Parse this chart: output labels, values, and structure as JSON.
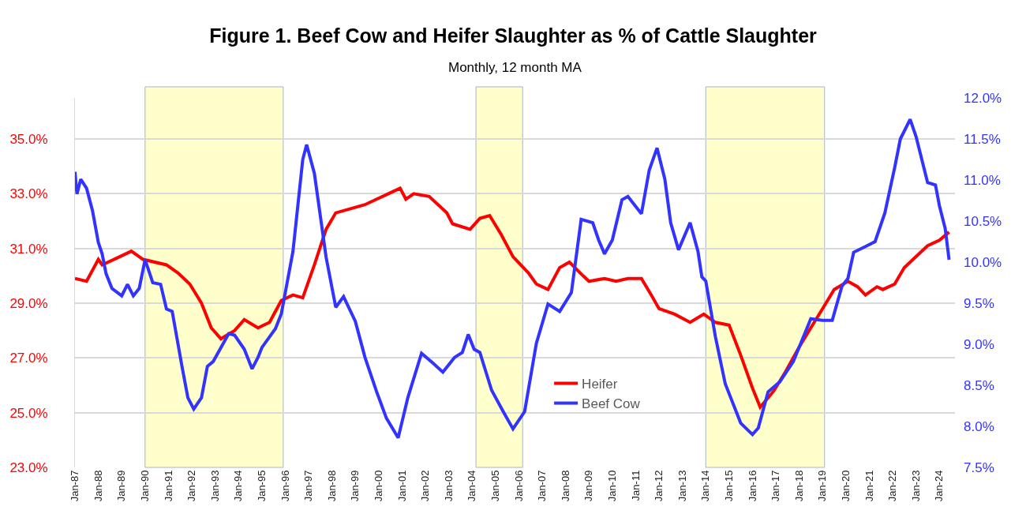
{
  "chart_data": {
    "type": "line",
    "title": "Figure 1. Beef Cow and Heifer Slaughter as % of Cattle Slaughter",
    "subtitle": "Monthly, 12 month MA",
    "series": [
      {
        "name": "Heifer",
        "color": "#ff0000",
        "axis": "y",
        "x": [
          "1987-01",
          "1987-07",
          "1988-01",
          "1988-03",
          "1988-12",
          "1989-06",
          "1989-12",
          "1990-12",
          "1991-06",
          "1991-12",
          "1992-06",
          "1992-11",
          "1993-04",
          "1993-11",
          "1994-04",
          "1994-11",
          "1995-05",
          "1995-11",
          "1996-05",
          "1996-10",
          "1997-04",
          "1997-10",
          "1998-03",
          "1999-01",
          "1999-06",
          "1999-12",
          "2000-06",
          "2000-12",
          "2001-03",
          "2001-07",
          "2002-03",
          "2002-12",
          "2003-03",
          "2003-12",
          "2004-05",
          "2004-10",
          "2005-04",
          "2005-10",
          "2006-06",
          "2006-10",
          "2007-04",
          "2007-10",
          "2008-03",
          "2008-10",
          "2009-01",
          "2009-09",
          "2010-03",
          "2010-09",
          "2011-04",
          "2011-09",
          "2012-01",
          "2012-09",
          "2013-05",
          "2013-12",
          "2014-06",
          "2015-01",
          "2015-07",
          "2016-01",
          "2016-05",
          "2016-12",
          "2017-06",
          "2018-01",
          "2018-07",
          "2019-01",
          "2019-07",
          "2020-02",
          "2020-07",
          "2020-11",
          "2021-05",
          "2021-08",
          "2022-02",
          "2022-07",
          "2023-01",
          "2023-07",
          "2024-01",
          "2024-06"
        ],
        "values": [
          29.9,
          29.8,
          30.6,
          30.4,
          30.7,
          30.9,
          30.6,
          30.4,
          30.1,
          29.7,
          29.0,
          28.1,
          27.7,
          28.0,
          28.4,
          28.1,
          28.3,
          29.1,
          29.3,
          29.2,
          30.4,
          31.7,
          32.3,
          32.5,
          32.6,
          32.8,
          33.0,
          33.2,
          32.8,
          33.0,
          32.9,
          32.3,
          31.9,
          31.7,
          32.1,
          32.2,
          31.5,
          30.7,
          30.1,
          29.7,
          29.5,
          30.3,
          30.5,
          30.0,
          29.8,
          29.9,
          29.8,
          29.9,
          29.9,
          29.3,
          28.8,
          28.6,
          28.3,
          28.6,
          28.3,
          28.2,
          27.1,
          25.9,
          25.2,
          25.8,
          26.5,
          27.4,
          28.1,
          28.8,
          29.5,
          29.8,
          29.6,
          29.3,
          29.6,
          29.5,
          29.7,
          30.3,
          30.7,
          31.1,
          31.3,
          31.6
        ]
      },
      {
        "name": "Beef Cow",
        "color": "#3333ff",
        "axis": "y2",
        "x": [
          "1987-01",
          "1987-02",
          "1987-04",
          "1987-07",
          "1987-10",
          "1988-01",
          "1988-03",
          "1988-05",
          "1988-08",
          "1989-01",
          "1989-04",
          "1989-07",
          "1989-10",
          "1990-01",
          "1990-05",
          "1990-09",
          "1990-12",
          "1991-03",
          "1991-08",
          "1991-11",
          "1992-02",
          "1992-06",
          "1992-09",
          "1992-12",
          "1993-04",
          "1993-08",
          "1993-11",
          "1994-04",
          "1994-08",
          "1994-11",
          "1995-01",
          "1995-05",
          "1995-08",
          "1995-11",
          "1996-05",
          "1996-10",
          "1996-12",
          "1997-04",
          "1997-10",
          "1998-03",
          "1998-07",
          "1999-01",
          "1999-06",
          "1999-12",
          "2000-05",
          "2000-11",
          "2001-04",
          "2001-11",
          "2002-05",
          "2002-10",
          "2003-04",
          "2003-08",
          "2003-11",
          "2004-02",
          "2004-05",
          "2004-11",
          "2005-05",
          "2005-10",
          "2006-04",
          "2006-10",
          "2007-04",
          "2007-10",
          "2008-04",
          "2008-09",
          "2009-03",
          "2009-06",
          "2009-09",
          "2010-01",
          "2010-06",
          "2010-09",
          "2011-04",
          "2011-08",
          "2011-12",
          "2012-04",
          "2012-07",
          "2012-11",
          "2013-05",
          "2013-09",
          "2013-11",
          "2014-01",
          "2014-06",
          "2014-11",
          "2015-07",
          "2016-01",
          "2016-04",
          "2016-09",
          "2017-03",
          "2017-10",
          "2018-07",
          "2019-01",
          "2019-06",
          "2019-11",
          "2020-02",
          "2020-05",
          "2020-11",
          "2021-04",
          "2021-09",
          "2022-02",
          "2022-05",
          "2022-10",
          "2023-01",
          "2023-07",
          "2023-11",
          "2024-01",
          "2024-04",
          "2024-06"
        ],
        "values": [
          11.1,
          10.83,
          11.01,
          10.9,
          10.63,
          10.24,
          10.1,
          9.86,
          9.68,
          9.59,
          9.73,
          9.59,
          9.68,
          10.03,
          9.75,
          9.73,
          9.43,
          9.4,
          8.73,
          8.35,
          8.21,
          8.35,
          8.73,
          8.79,
          8.96,
          9.13,
          9.11,
          8.94,
          8.7,
          8.84,
          8.96,
          9.09,
          9.19,
          9.37,
          10.13,
          11.25,
          11.43,
          11.08,
          10.06,
          9.45,
          9.58,
          9.28,
          8.84,
          8.42,
          8.1,
          7.86,
          8.35,
          8.89,
          8.77,
          8.66,
          8.84,
          8.9,
          9.12,
          8.94,
          8.9,
          8.44,
          8.18,
          7.97,
          8.18,
          9.01,
          9.49,
          9.4,
          9.63,
          10.52,
          10.48,
          10.27,
          10.1,
          10.27,
          10.76,
          10.8,
          10.59,
          11.12,
          11.39,
          11.01,
          10.48,
          10.15,
          10.48,
          10.13,
          9.82,
          9.77,
          9.09,
          8.52,
          8.04,
          7.9,
          7.98,
          8.42,
          8.54,
          8.79,
          9.31,
          9.29,
          9.29,
          9.71,
          9.8,
          10.12,
          10.19,
          10.25,
          10.6,
          11.15,
          11.5,
          11.74,
          11.53,
          10.97,
          10.94,
          10.69,
          10.41,
          10.03
        ]
      }
    ],
    "xlim": [
      "1987-01",
      "2024-09"
    ],
    "xticks": [
      {
        "value": "1987-01",
        "label": "Jan-87"
      },
      {
        "value": "1988-01",
        "label": "Jan-88"
      },
      {
        "value": "1989-01",
        "label": "Jan-89"
      },
      {
        "value": "1990-01",
        "label": "Jan-90"
      },
      {
        "value": "1991-01",
        "label": "Jan-91"
      },
      {
        "value": "1992-01",
        "label": "Jan-92"
      },
      {
        "value": "1993-01",
        "label": "Jan-93"
      },
      {
        "value": "1994-01",
        "label": "Jan-94"
      },
      {
        "value": "1995-01",
        "label": "Jan-95"
      },
      {
        "value": "1996-01",
        "label": "Jan-96"
      },
      {
        "value": "1997-01",
        "label": "Jan-97"
      },
      {
        "value": "1998-01",
        "label": "Jan-98"
      },
      {
        "value": "1999-01",
        "label": "Jan-99"
      },
      {
        "value": "2000-01",
        "label": "Jan-00"
      },
      {
        "value": "2001-01",
        "label": "Jan-01"
      },
      {
        "value": "2002-01",
        "label": "Jan-02"
      },
      {
        "value": "2003-01",
        "label": "Jan-03"
      },
      {
        "value": "2004-01",
        "label": "Jan-04"
      },
      {
        "value": "2005-01",
        "label": "Jan-05"
      },
      {
        "value": "2006-01",
        "label": "Jan-06"
      },
      {
        "value": "2007-01",
        "label": "Jan-07"
      },
      {
        "value": "2008-01",
        "label": "Jan-08"
      },
      {
        "value": "2009-01",
        "label": "Jan-09"
      },
      {
        "value": "2010-01",
        "label": "Jan-10"
      },
      {
        "value": "2011-01",
        "label": "Jan-11"
      },
      {
        "value": "2012-01",
        "label": "Jan-12"
      },
      {
        "value": "2013-01",
        "label": "Jan-13"
      },
      {
        "value": "2014-01",
        "label": "Jan-14"
      },
      {
        "value": "2015-01",
        "label": "Jan-15"
      },
      {
        "value": "2016-01",
        "label": "Jan-16"
      },
      {
        "value": "2017-01",
        "label": "Jan-17"
      },
      {
        "value": "2018-01",
        "label": "Jan-18"
      },
      {
        "value": "2019-01",
        "label": "Jan-19"
      },
      {
        "value": "2020-01",
        "label": "Jan-20"
      },
      {
        "value": "2021-01",
        "label": "Jan-21"
      },
      {
        "value": "2022-01",
        "label": "Jan-22"
      },
      {
        "value": "2023-01",
        "label": "Jan-23"
      },
      {
        "value": "2024-01",
        "label": "Jan-24"
      }
    ],
    "ylim": [
      23,
      36.5
    ],
    "yticks": [
      {
        "value": 23,
        "label": "23.0%"
      },
      {
        "value": 25,
        "label": "25.0%"
      },
      {
        "value": 27,
        "label": "27.0%"
      },
      {
        "value": 29,
        "label": "29.0%"
      },
      {
        "value": 31,
        "label": "31.0%"
      },
      {
        "value": 33,
        "label": "33.0%"
      },
      {
        "value": 35,
        "label": "35.0%"
      }
    ],
    "y2lim": [
      7.5,
      12
    ],
    "y2ticks": [
      {
        "value": 7.5,
        "label": "7.5%"
      },
      {
        "value": 8,
        "label": "8.0%"
      },
      {
        "value": 8.5,
        "label": "8.5%"
      },
      {
        "value": 9,
        "label": "9.0%"
      },
      {
        "value": 9.5,
        "label": "9.5%"
      },
      {
        "value": 10,
        "label": "10.0%"
      },
      {
        "value": 10.5,
        "label": "10.5%"
      },
      {
        "value": 11,
        "label": "11.0%"
      },
      {
        "value": 11.5,
        "label": "11.5%"
      },
      {
        "value": 12,
        "label": "12.0%"
      }
    ],
    "bands": [
      {
        "axis": "x",
        "from": "1990-01",
        "to": "1995-12",
        "color": "#ffffcc"
      },
      {
        "axis": "x",
        "from": "2004-03",
        "to": "2006-03",
        "color": "#ffffcc"
      },
      {
        "axis": "x",
        "from": "2014-01",
        "to": "2019-02",
        "color": "#ffffcc"
      }
    ],
    "grid": "y",
    "legend": "bottom",
    "line_style": "solid"
  }
}
